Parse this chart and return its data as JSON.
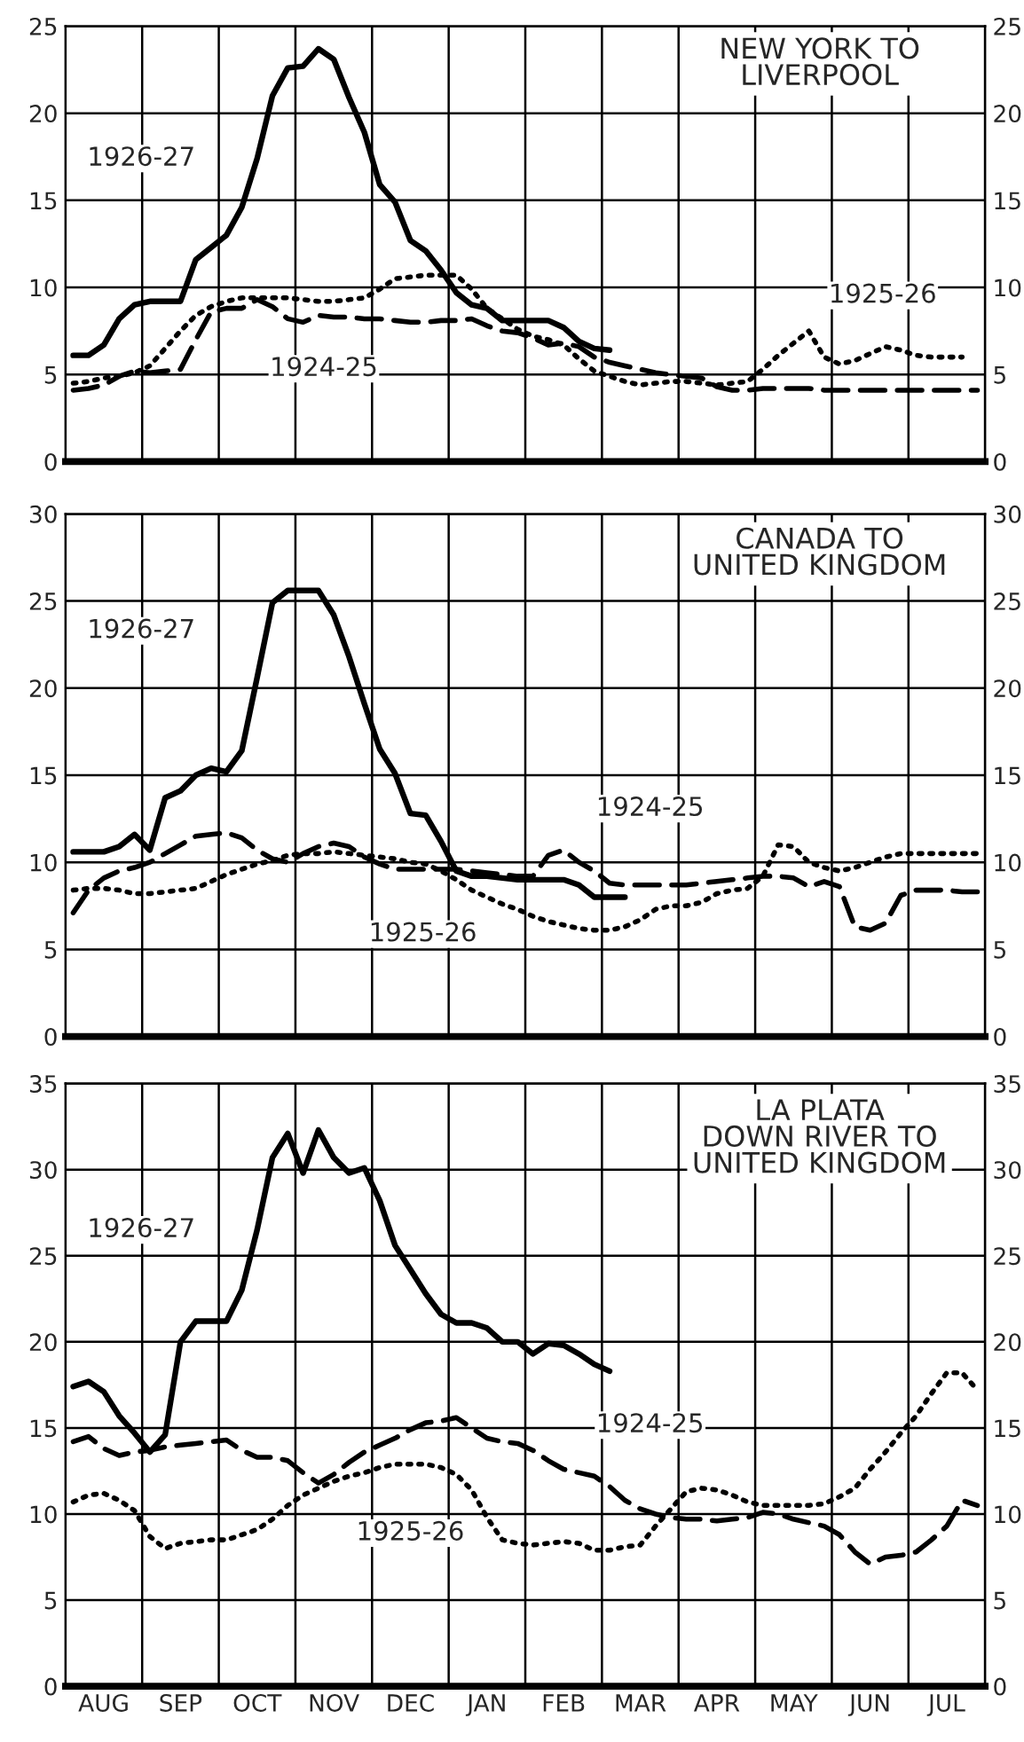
{
  "chart_data": [
    {
      "type": "line",
      "title": "NEW YORK TO\nLIVERPOOL",
      "categories": [
        null,
        null,
        "AUG",
        null,
        null,
        null,
        null,
        "SEP",
        null,
        null,
        null,
        null,
        "OCT",
        null,
        null,
        null,
        null,
        "NOV",
        null,
        null,
        null,
        null,
        "DEC",
        null,
        null,
        null,
        null,
        "JAN",
        null,
        null,
        null,
        null,
        "FEB",
        null,
        null,
        null,
        null,
        "MAR",
        null,
        null,
        null,
        null,
        "APR",
        null,
        null,
        null,
        null,
        "MAY",
        null,
        null,
        null,
        null,
        "JUN",
        null,
        null,
        null,
        null,
        "JUL",
        null,
        null
      ],
      "ylim": [
        0,
        25
      ],
      "yticks": [
        0,
        5,
        10,
        15,
        20,
        25
      ],
      "y2lim": [
        0,
        25
      ],
      "y2ticks": [
        0,
        5,
        10,
        15,
        20,
        25
      ],
      "tick_labels": "y",
      "grid": true,
      "series": [
        {
          "color": "#000000",
          "line_style": "solid",
          "values": [
            6.1,
            6.1,
            6.7,
            8.2,
            9.0,
            9.2,
            9.2,
            9.2,
            11.6,
            12.3,
            13.0,
            14.6,
            17.4,
            21.0,
            22.6,
            22.7,
            23.7,
            23.1,
            20.9,
            18.9,
            15.9,
            14.9,
            12.7,
            12.1,
            11.0,
            9.7,
            9.0,
            8.8,
            8.1,
            8.1,
            8.1,
            8.1,
            7.7,
            6.9,
            6.5,
            6.4,
            null,
            null,
            null,
            null,
            null,
            null,
            null,
            null,
            null,
            null,
            null,
            null,
            null,
            null,
            null,
            null,
            null,
            null,
            null,
            null,
            null,
            null,
            null,
            null
          ]
        },
        {
          "color": "#000000",
          "line_style": "dashed",
          "values": [
            4.1,
            4.2,
            4.4,
            4.9,
            5.2,
            5.1,
            5.2,
            5.3,
            7.0,
            8.6,
            8.8,
            8.8,
            9.3,
            8.9,
            8.2,
            8.0,
            8.4,
            8.3,
            8.3,
            8.2,
            8.2,
            8.1,
            8.0,
            8.0,
            8.1,
            8.1,
            8.2,
            7.8,
            7.5,
            7.4,
            7.1,
            6.7,
            6.8,
            6.6,
            6.0,
            5.7,
            5.5,
            5.3,
            5.1,
            5.0,
            4.9,
            4.8,
            4.3,
            4.1,
            4.1,
            4.2,
            4.2,
            4.2,
            4.2,
            4.1,
            4.1,
            4.1,
            4.1,
            4.1,
            4.1,
            4.1,
            4.1,
            4.1,
            4.1,
            4.1
          ]
        },
        {
          "color": "#000000",
          "line_style": "dotted",
          "values": [
            4.5,
            4.6,
            4.8,
            4.9,
            5.1,
            5.5,
            6.5,
            7.5,
            8.4,
            8.9,
            9.2,
            9.4,
            9.4,
            9.4,
            9.4,
            9.3,
            9.2,
            9.2,
            9.3,
            9.4,
            9.9,
            10.5,
            10.6,
            10.7,
            10.7,
            10.7,
            9.9,
            8.8,
            8.2,
            7.6,
            7.2,
            7.0,
            6.7,
            5.9,
            5.2,
            4.9,
            4.6,
            4.4,
            4.5,
            4.6,
            4.6,
            4.5,
            4.4,
            4.5,
            4.6,
            5.3,
            6.1,
            6.8,
            7.5,
            6.0,
            5.6,
            5.8,
            6.2,
            6.6,
            6.4,
            6.1,
            6.0,
            6.0,
            6.0,
            null
          ]
        }
      ],
      "annotations": [
        {
          "text": "1926-27",
          "x": "OCT",
          "y": 17.4
        },
        {
          "text": "1924-25",
          "x": "NOV",
          "y": 8.3
        },
        {
          "text": "1925-26",
          "x": "JUL",
          "y": 6.0
        }
      ]
    },
    {
      "type": "line",
      "title": "CANADA TO\nUNITED KINGDOM",
      "categories": [
        null,
        null,
        "AUG",
        null,
        null,
        null,
        null,
        "SEP",
        null,
        null,
        null,
        null,
        "OCT",
        null,
        null,
        null,
        null,
        "NOV",
        null,
        null,
        null,
        null,
        "DEC",
        null,
        null,
        null,
        null,
        "JAN",
        null,
        null,
        null,
        null,
        "FEB",
        null,
        null,
        null,
        null,
        "MAR",
        null,
        null,
        null,
        null,
        "APR",
        null,
        null,
        null,
        null,
        "MAY",
        null,
        null,
        null,
        null,
        "JUN",
        null,
        null,
        null,
        null,
        "JUL",
        null,
        null
      ],
      "ylim": [
        0,
        30
      ],
      "yticks": [
        0,
        5,
        10,
        15,
        20,
        25,
        30
      ],
      "y2lim": [
        0,
        30
      ],
      "y2ticks": [
        0,
        5,
        10,
        15,
        20,
        25,
        30
      ],
      "tick_labels": "y",
      "grid": true,
      "series": [
        {
          "color": "#000000",
          "line_style": "solid",
          "values": [
            10.6,
            10.6,
            10.6,
            10.9,
            11.6,
            10.7,
            13.7,
            14.1,
            15.0,
            15.4,
            15.2,
            16.4,
            20.6,
            24.9,
            25.6,
            25.6,
            25.6,
            24.2,
            21.8,
            19.1,
            16.5,
            15.1,
            12.8,
            12.7,
            11.2,
            9.5,
            9.2,
            9.2,
            9.1,
            9.0,
            9.0,
            9.0,
            9.0,
            8.7,
            8.0,
            8.0,
            8.0,
            null,
            null,
            null,
            null,
            null,
            null,
            null,
            null,
            null,
            null,
            null,
            null,
            null,
            null,
            null,
            null,
            null,
            null,
            null,
            null,
            null,
            null,
            null
          ]
        },
        {
          "color": "#000000",
          "line_style": "dashed",
          "values": [
            7.1,
            8.4,
            9.1,
            9.5,
            9.7,
            10.0,
            10.5,
            11.0,
            11.5,
            11.6,
            11.7,
            11.4,
            10.7,
            10.2,
            10.0,
            10.5,
            10.9,
            11.1,
            10.9,
            10.3,
            9.9,
            9.6,
            9.6,
            9.6,
            9.6,
            9.6,
            9.5,
            9.4,
            9.3,
            9.2,
            9.2,
            10.4,
            10.7,
            10.0,
            9.5,
            8.8,
            8.7,
            8.7,
            8.7,
            8.7,
            8.7,
            8.8,
            8.9,
            9.0,
            9.1,
            9.2,
            9.2,
            9.1,
            8.6,
            8.9,
            8.6,
            6.3,
            6.1,
            6.5,
            8.1,
            8.4,
            8.4,
            8.4,
            8.3,
            8.3
          ]
        },
        {
          "color": "#000000",
          "line_style": "dotted",
          "values": [
            8.4,
            8.5,
            8.5,
            8.4,
            8.2,
            8.2,
            8.3,
            8.4,
            8.5,
            8.9,
            9.3,
            9.6,
            9.9,
            10.1,
            10.4,
            10.5,
            10.5,
            10.6,
            10.5,
            10.4,
            10.3,
            10.2,
            10.0,
            9.9,
            9.5,
            9.0,
            8.4,
            8.0,
            7.6,
            7.3,
            6.9,
            6.6,
            6.4,
            6.2,
            6.1,
            6.1,
            6.3,
            6.7,
            7.3,
            7.5,
            7.5,
            7.7,
            8.2,
            8.4,
            8.5,
            9.2,
            11.0,
            10.9,
            10.0,
            9.7,
            9.5,
            9.7,
            10.0,
            10.3,
            10.5,
            10.5,
            10.5,
            10.5,
            10.5,
            10.5
          ]
        }
      ],
      "annotations": [
        {
          "text": "1926-27",
          "x": "OCT",
          "y": 20.6
        },
        {
          "text": "1924-25",
          "x": "MAR",
          "y": 8.7
        },
        {
          "text": "1925-26",
          "x": "JAN",
          "y": 8.0
        }
      ]
    },
    {
      "type": "line",
      "title": "LA PLATA\nDOWN RIVER TO\nUNITED KINGDOM",
      "categories": [
        null,
        null,
        "AUG",
        null,
        null,
        null,
        null,
        "SEP",
        null,
        null,
        null,
        null,
        "OCT",
        null,
        null,
        null,
        null,
        "NOV",
        null,
        null,
        null,
        null,
        "DEC",
        null,
        null,
        null,
        null,
        "JAN",
        null,
        null,
        null,
        null,
        "FEB",
        null,
        null,
        null,
        null,
        "MAR",
        null,
        null,
        null,
        null,
        "APR",
        null,
        null,
        null,
        null,
        "MAY",
        null,
        null,
        null,
        null,
        "JUN",
        null,
        null,
        null,
        null,
        "JUL",
        null,
        null
      ],
      "ylim": [
        0,
        35
      ],
      "yticks": [
        0,
        5,
        10,
        15,
        20,
        25,
        30,
        35
      ],
      "y2lim": [
        0,
        35
      ],
      "y2ticks": [
        0,
        5,
        10,
        15,
        20,
        25,
        30,
        35
      ],
      "grid": true,
      "series": [
        {
          "color": "#000000",
          "line_style": "solid",
          "values": [
            17.4,
            17.7,
            17.1,
            15.7,
            14.7,
            13.6,
            14.6,
            20.0,
            21.2,
            21.2,
            21.2,
            23.0,
            26.5,
            30.7,
            32.1,
            29.8,
            32.3,
            30.7,
            29.8,
            30.1,
            28.2,
            25.6,
            24.2,
            22.8,
            21.6,
            21.1,
            21.1,
            20.8,
            20.0,
            20.0,
            19.3,
            19.9,
            19.8,
            19.3,
            18.7,
            18.3,
            null,
            null,
            null,
            null,
            null,
            null,
            null,
            null,
            null,
            null,
            null,
            null,
            null,
            null,
            null,
            null,
            null,
            null,
            null,
            null,
            null,
            null,
            null,
            null
          ]
        },
        {
          "color": "#000000",
          "line_style": "dashed",
          "values": [
            14.2,
            14.5,
            13.8,
            13.4,
            13.6,
            13.7,
            13.9,
            14.0,
            14.1,
            14.2,
            14.3,
            13.7,
            13.3,
            13.3,
            13.1,
            12.4,
            11.8,
            12.3,
            13.0,
            13.6,
            14.0,
            14.4,
            14.9,
            15.3,
            15.4,
            15.6,
            15.0,
            14.4,
            14.2,
            14.1,
            13.7,
            13.1,
            12.6,
            12.4,
            12.2,
            11.6,
            10.8,
            10.3,
            10.0,
            9.8,
            9.7,
            9.7,
            9.6,
            9.7,
            9.8,
            10.1,
            10.0,
            9.7,
            9.5,
            9.3,
            8.8,
            7.8,
            7.1,
            7.5,
            7.6,
            7.8,
            8.5,
            9.3,
            10.8,
            10.5
          ]
        },
        {
          "color": "#000000",
          "line_style": "dotted",
          "values": [
            10.7,
            11.1,
            11.2,
            10.8,
            10.2,
            8.7,
            8.0,
            8.3,
            8.4,
            8.5,
            8.5,
            8.8,
            9.1,
            9.7,
            10.5,
            11.1,
            11.5,
            11.9,
            12.2,
            12.4,
            12.7,
            12.9,
            12.9,
            12.9,
            12.7,
            12.3,
            11.4,
            9.8,
            8.5,
            8.3,
            8.2,
            8.3,
            8.4,
            8.3,
            7.9,
            7.9,
            8.1,
            8.2,
            9.3,
            10.3,
            11.3,
            11.5,
            11.4,
            11.1,
            10.7,
            10.5,
            10.5,
            10.5,
            10.5,
            10.6,
            11.0,
            11.5,
            12.6,
            13.6,
            14.7,
            15.7,
            17.0,
            18.2,
            18.2,
            17.2
          ]
        }
      ],
      "annotations": [
        {
          "text": "1926-27",
          "x": "OCT",
          "y": 26.5
        },
        {
          "text": "1924-25",
          "x": "MAR",
          "y": 10.3
        },
        {
          "text": "1925-26",
          "x": "DEC",
          "y": 12.9
        }
      ]
    }
  ]
}
